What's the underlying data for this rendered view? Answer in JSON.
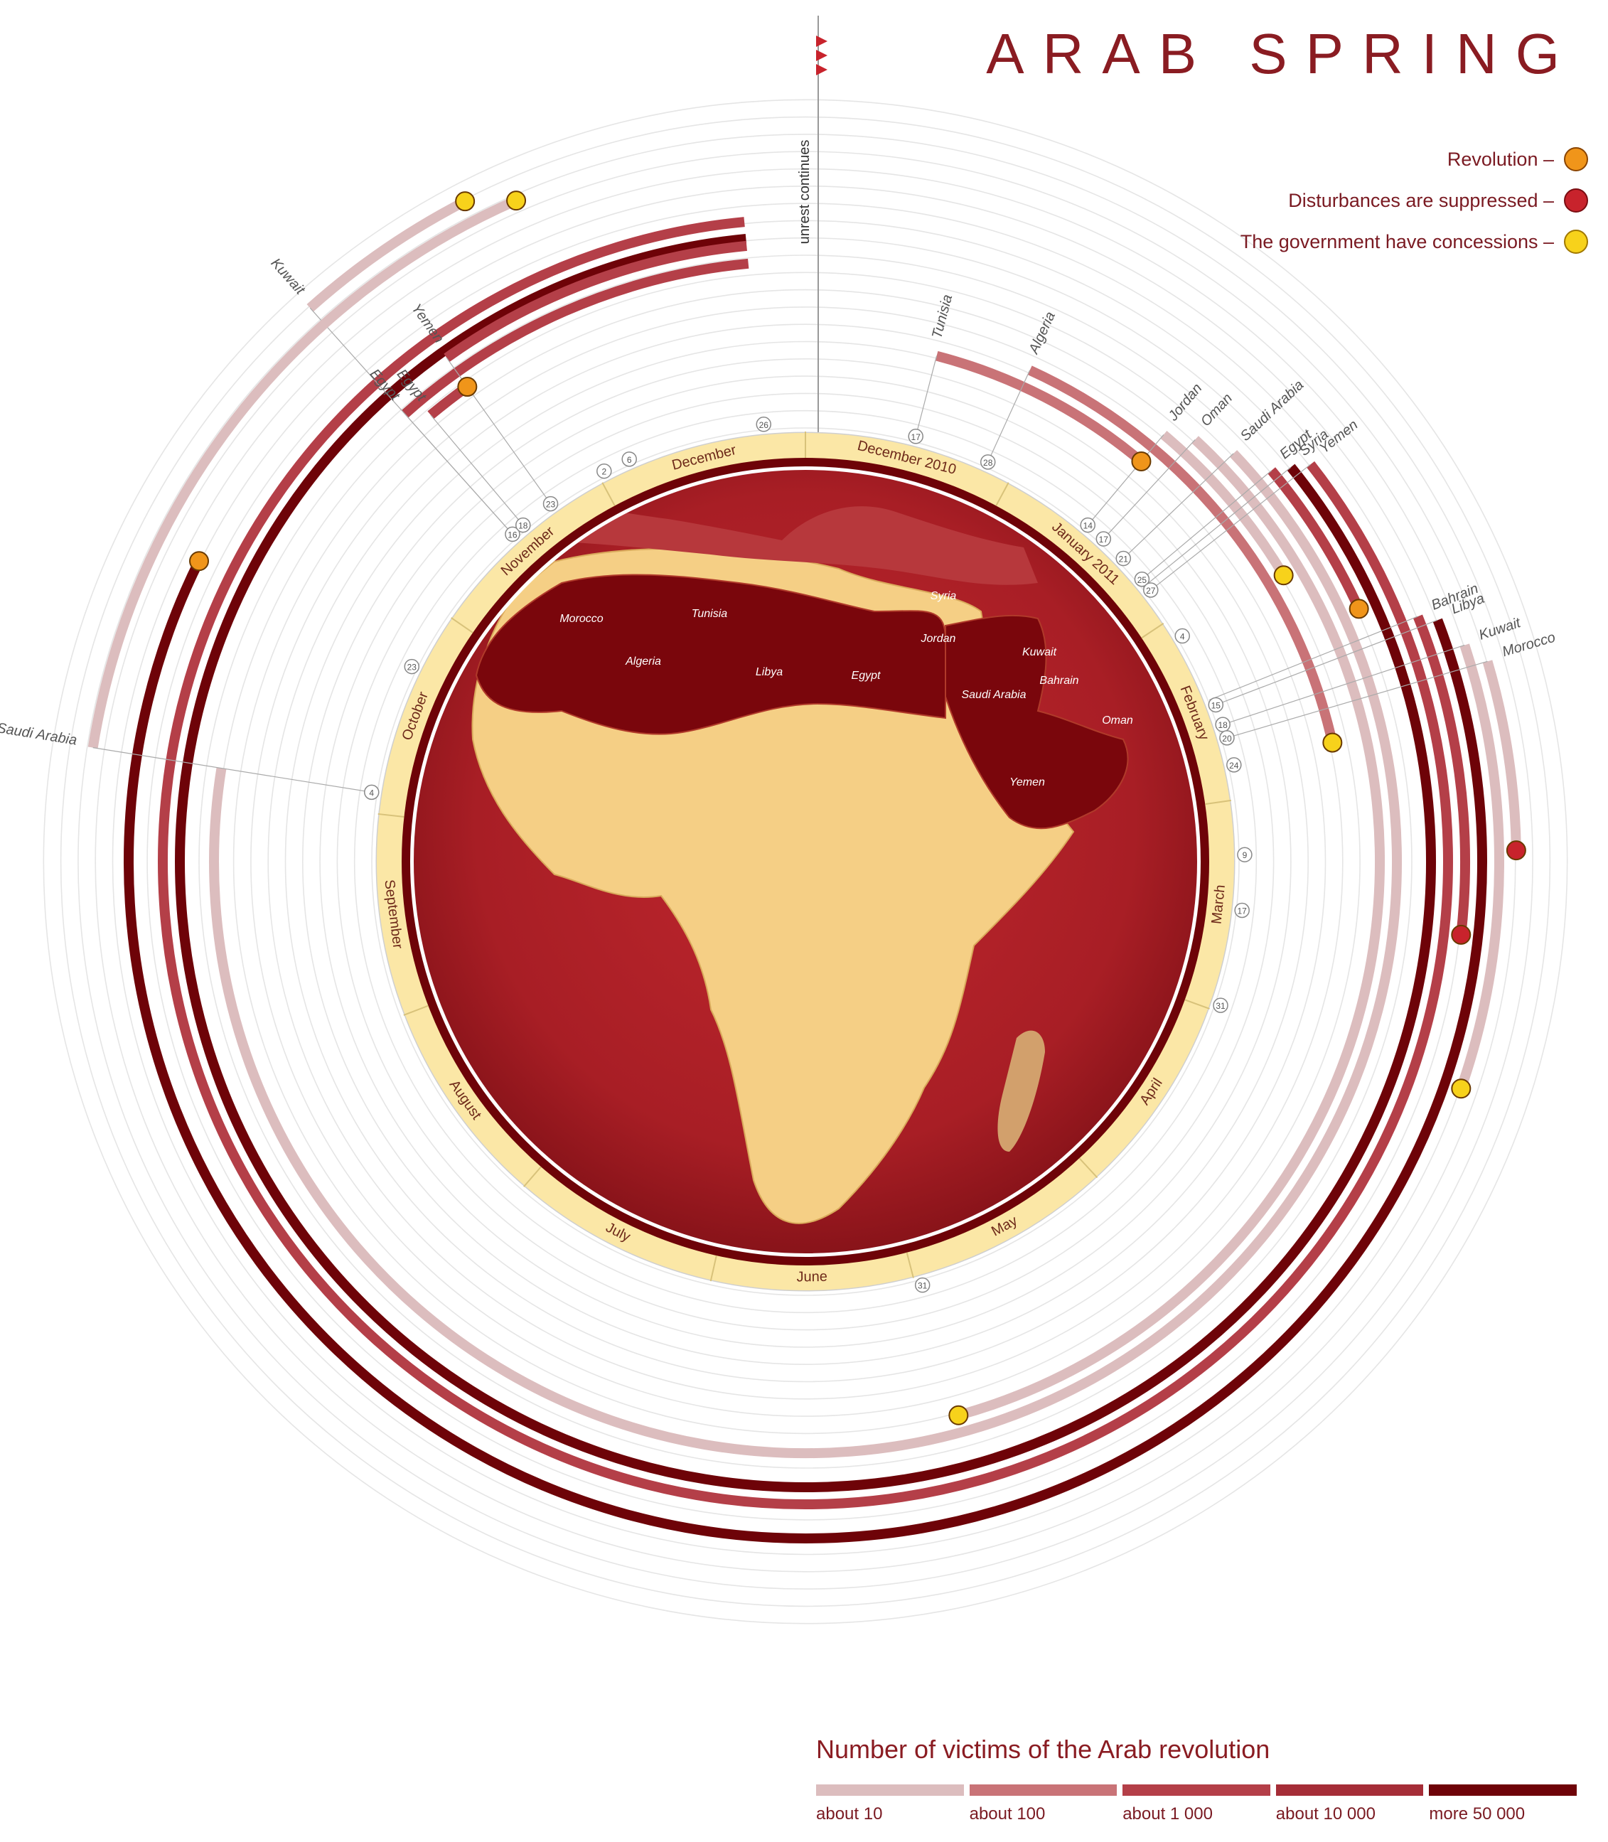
{
  "title": "ARAB SPRING",
  "legend": [
    {
      "label": "Revolution –",
      "color": "#f0951a",
      "icon": "orange-circle-icon"
    },
    {
      "label": "Disturbances are suppressed –",
      "color": "#c8232c",
      "icon": "red-circle-icon"
    },
    {
      "label": "The government have concessions –",
      "color": "#f7d21b",
      "icon": "yellow-circle-icon"
    }
  ],
  "victims_title": "Number of victims of the Arab revolution",
  "victims_scale": [
    {
      "label": "about 10",
      "color": "#dcbdbe"
    },
    {
      "label": "about 100",
      "color": "#c97377"
    },
    {
      "label": "about 1 000",
      "color": "#b43f48"
    },
    {
      "label": "about 10 000",
      "color": "#a52d37"
    },
    {
      "label": "more 50 000",
      "color": "#6e0308"
    }
  ],
  "unrest_note": "unrest continues",
  "chart_data": {
    "type": "radial-timeline",
    "months": [
      "December 2010",
      "January 2011",
      "February",
      "March",
      "April",
      "May",
      "June",
      "July",
      "August",
      "September",
      "October",
      "November",
      "December"
    ],
    "day_markers": [
      "17",
      "28",
      "14",
      "17",
      "21",
      "25",
      "27",
      "4",
      "15",
      "18",
      "20",
      "24",
      "9",
      "17",
      "31",
      "31",
      "4",
      "23",
      "16",
      "18",
      "23",
      "2",
      "6",
      "26"
    ],
    "map_labels": [
      "Morocco",
      "Algeria",
      "Tunisia",
      "Libya",
      "Egypt",
      "Syria",
      "Jordan",
      "Kuwait",
      "Bahrain",
      "Saudi Arabia",
      "Oman",
      "Yemen"
    ],
    "series": [
      {
        "name": "Tunisia",
        "start": "2010-12-17",
        "end": "2011-01-14",
        "outcome": "Revolution",
        "victims": "about 100"
      },
      {
        "name": "Algeria",
        "start": "2010-12-28",
        "end": "2011-02-24",
        "outcome": "The government have concessions",
        "victims": "about 100"
      },
      {
        "name": "Jordan",
        "start": "2011-01-14",
        "end": "2011-02-04",
        "outcome": "The government have concessions",
        "victims": "about 10"
      },
      {
        "name": "Oman",
        "start": "2011-01-17",
        "end": "2011-05-31",
        "outcome": "The government have concessions",
        "victims": "about 10"
      },
      {
        "name": "Saudi Arabia",
        "start": "2011-01-21",
        "end": "2011-10-04",
        "outcome": "unrest continues",
        "victims": "about 10"
      },
      {
        "name": "Egypt",
        "start": "2011-01-25",
        "end": "2011-02-11",
        "outcome": "Revolution",
        "victims": "about 1 000"
      },
      {
        "name": "Syria",
        "start": "2011-01-26",
        "end": "2011-12-26",
        "outcome": "unrest continues",
        "victims": "more 50 000"
      },
      {
        "name": "Yemen",
        "start": "2011-01-27",
        "end": "2011-12-26",
        "outcome": "unrest continues",
        "victims": "about 1 000"
      },
      {
        "name": "Bahrain",
        "start": "2011-02-14",
        "end": "2011-03-17",
        "outcome": "Disturbances are suppressed",
        "victims": "about 1 000"
      },
      {
        "name": "Libya",
        "start": "2011-02-15",
        "end": "2011-10-23",
        "outcome": "Revolution",
        "victims": "more 50 000"
      },
      {
        "name": "Kuwait",
        "start": "2011-02-18",
        "end": "2011-03-31",
        "outcome": "The government have concessions",
        "victims": "about 10"
      },
      {
        "name": "Morocco",
        "start": "2011-02-20",
        "end": "2011-03-09",
        "outcome": "Disturbances are suppressed",
        "victims": "about 10"
      },
      {
        "name": "Egypt",
        "start": "2011-11-16",
        "end": "2011-12-26",
        "outcome": "unrest continues",
        "victims": "about 1 000"
      },
      {
        "name": "Egypt",
        "start": "2011-11-18",
        "end": "2011-11-23",
        "outcome": "Revolution",
        "victims": "about 1 000"
      },
      {
        "name": "Yemen",
        "start": "2011-11-23",
        "end": "2011-12-26",
        "outcome": "unrest continues",
        "victims": "about 1 000"
      },
      {
        "name": "Kuwait",
        "start": "2011-11-16",
        "end": "2011-12-02",
        "outcome": "The government have concessions",
        "victims": "about 10"
      },
      {
        "name": "Saudi Arabia",
        "start": "2011-10-04",
        "end": "2011-12-06",
        "outcome": "The government have concessions",
        "victims": "about 10"
      }
    ]
  }
}
